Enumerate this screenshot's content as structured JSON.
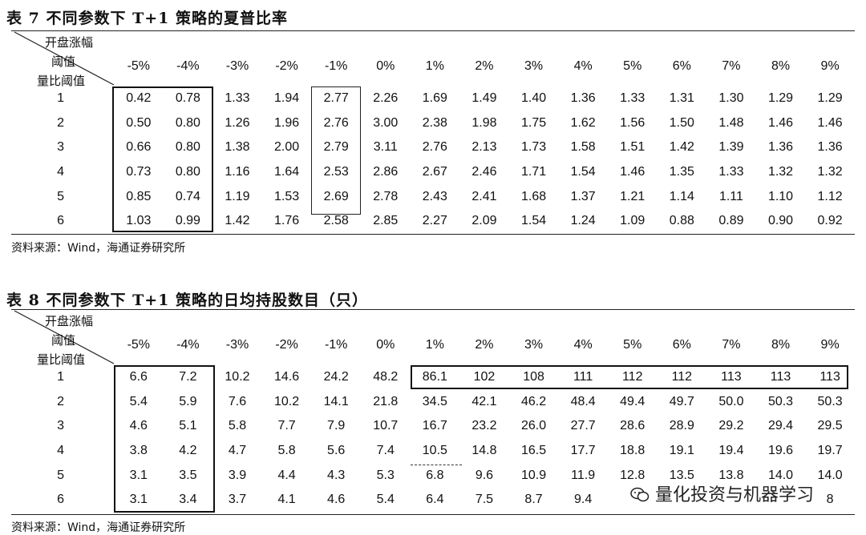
{
  "columns": [
    "-5%",
    "-4%",
    "-3%",
    "-2%",
    "-1%",
    "0%",
    "1%",
    "2%",
    "3%",
    "4%",
    "5%",
    "6%",
    "7%",
    "8%",
    "9%"
  ],
  "corner": {
    "top": "开盘涨幅",
    "middle": "阈值",
    "bottom": "量比阈值"
  },
  "table7": {
    "title": "表 7  不同参数下 T+1 策略的夏普比率",
    "source": "资料来源：Wind，海通证券研究所",
    "rows": [
      {
        "label": "1",
        "values": [
          "0.42",
          "0.78",
          "1.33",
          "1.94",
          "2.77",
          "2.26",
          "1.69",
          "1.49",
          "1.40",
          "1.36",
          "1.33",
          "1.31",
          "1.30",
          "1.29",
          "1.29"
        ]
      },
      {
        "label": "2",
        "values": [
          "0.50",
          "0.80",
          "1.26",
          "1.96",
          "2.76",
          "3.00",
          "2.38",
          "1.98",
          "1.75",
          "1.62",
          "1.56",
          "1.50",
          "1.48",
          "1.46",
          "1.46"
        ]
      },
      {
        "label": "3",
        "values": [
          "0.66",
          "0.80",
          "1.38",
          "2.00",
          "2.79",
          "3.11",
          "2.76",
          "2.13",
          "1.73",
          "1.58",
          "1.51",
          "1.42",
          "1.39",
          "1.36",
          "1.36"
        ]
      },
      {
        "label": "4",
        "values": [
          "0.73",
          "0.80",
          "1.16",
          "1.64",
          "2.53",
          "2.86",
          "2.67",
          "2.46",
          "1.71",
          "1.54",
          "1.46",
          "1.35",
          "1.33",
          "1.32",
          "1.32"
        ]
      },
      {
        "label": "5",
        "values": [
          "0.85",
          "0.74",
          "1.19",
          "1.53",
          "2.69",
          "2.78",
          "2.43",
          "2.41",
          "1.68",
          "1.37",
          "1.21",
          "1.14",
          "1.11",
          "1.10",
          "1.12"
        ]
      },
      {
        "label": "6",
        "values": [
          "1.03",
          "0.99",
          "1.42",
          "1.76",
          "2.58",
          "2.85",
          "2.27",
          "2.09",
          "1.54",
          "1.24",
          "1.09",
          "0.88",
          "0.89",
          "0.90",
          "0.92"
        ]
      }
    ]
  },
  "table8": {
    "title": "表 8  不同参数下 T+1 策略的日均持股数目（只）",
    "source": "资料来源：Wind，海通证券研究所",
    "rows": [
      {
        "label": "1",
        "values": [
          "6.6",
          "7.2",
          "10.2",
          "14.6",
          "24.2",
          "48.2",
          "86.1",
          "102",
          "108",
          "111",
          "112",
          "112",
          "113",
          "113",
          "113"
        ]
      },
      {
        "label": "2",
        "values": [
          "5.4",
          "5.9",
          "7.6",
          "10.2",
          "14.1",
          "21.8",
          "34.5",
          "42.1",
          "46.2",
          "48.4",
          "49.4",
          "49.7",
          "50.0",
          "50.3",
          "50.3"
        ]
      },
      {
        "label": "3",
        "values": [
          "4.6",
          "5.1",
          "5.8",
          "7.7",
          "7.9",
          "10.7",
          "16.7",
          "23.2",
          "26.0",
          "27.7",
          "28.6",
          "28.9",
          "29.2",
          "29.4",
          "29.5"
        ]
      },
      {
        "label": "4",
        "values": [
          "3.8",
          "4.2",
          "4.7",
          "5.8",
          "5.6",
          "7.4",
          "10.5",
          "14.8",
          "16.5",
          "17.7",
          "18.8",
          "19.1",
          "19.4",
          "19.6",
          "19.7"
        ]
      },
      {
        "label": "5",
        "values": [
          "3.1",
          "3.5",
          "3.9",
          "4.4",
          "4.3",
          "5.3",
          "6.8",
          "9.6",
          "10.9",
          "11.9",
          "12.8",
          "13.5",
          "13.8",
          "14.0",
          "14.0"
        ]
      },
      {
        "label": "6",
        "values": [
          "3.1",
          "3.4",
          "3.7",
          "4.1",
          "4.6",
          "5.4",
          "6.4",
          "7.5",
          "8.7",
          "9.4",
          "",
          "",
          "",
          "",
          "8"
        ]
      }
    ]
  },
  "watermark": {
    "text": "量化投资与机器学习",
    "icon": "wechat-icon"
  }
}
